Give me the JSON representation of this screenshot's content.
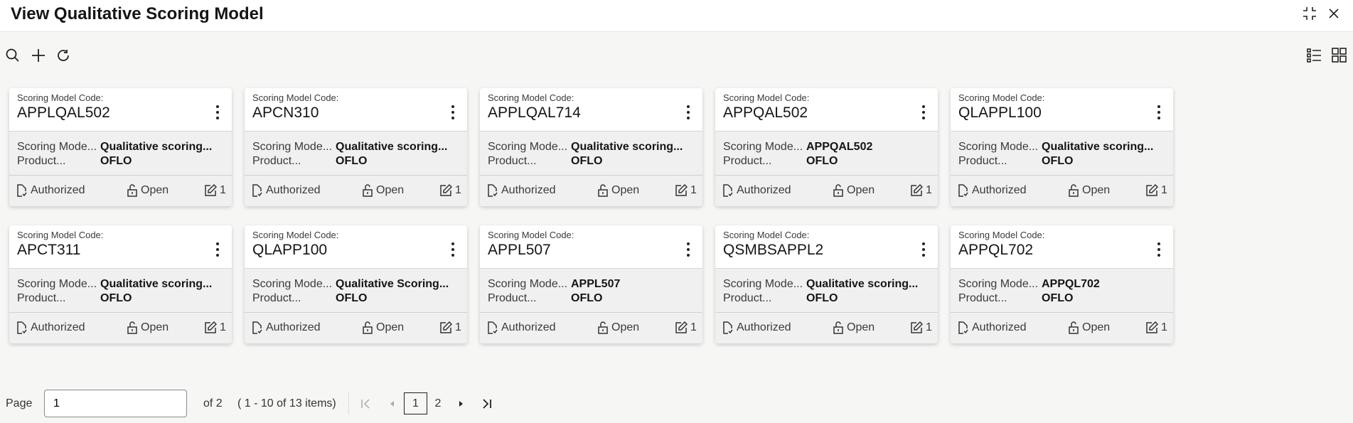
{
  "header": {
    "title": "View Qualitative Scoring Model",
    "icons": [
      "compress-icon",
      "close-icon"
    ]
  },
  "toolbar": {
    "icons": [
      "search-icon",
      "add-icon",
      "refresh-icon"
    ],
    "view_icons": [
      "list-view-icon",
      "grid-view-icon"
    ]
  },
  "card_labels": {
    "code": "Scoring Model Code:",
    "name": "Scoring Mode...",
    "product": "Product...",
    "status": "Authorized",
    "lock": "Open"
  },
  "cards": [
    {
      "code": "APPLQAL502",
      "name": "Qualitative scoring...",
      "product": "OFLO",
      "version": "1"
    },
    {
      "code": "APCN310",
      "name": "Qualitative scoring...",
      "product": "OFLO",
      "version": "1"
    },
    {
      "code": "APPLQAL714",
      "name": "Qualitative scoring...",
      "product": "OFLO",
      "version": "1"
    },
    {
      "code": "APPQAL502",
      "name": "APPQAL502",
      "product": "OFLO",
      "version": "1"
    },
    {
      "code": "QLAPPL100",
      "name": "Qualitative scoring...",
      "product": "OFLO",
      "version": "1"
    },
    {
      "code": "APCT311",
      "name": "Qualitative scoring...",
      "product": "OFLO",
      "version": "1"
    },
    {
      "code": "QLAPP100",
      "name": "Qualitative Scoring...",
      "product": "OFLO",
      "version": "1"
    },
    {
      "code": "APPL507",
      "name": "APPL507",
      "product": "OFLO",
      "version": "1"
    },
    {
      "code": "QSMBSAPPL2",
      "name": "Qualitative scoring...",
      "product": "OFLO",
      "version": "1"
    },
    {
      "code": "APPQL702",
      "name": "APPQL702",
      "product": "OFLO",
      "version": "1"
    }
  ],
  "pagination": {
    "page_label": "Page",
    "page_value": "1",
    "of_label": "of 2",
    "items_label": "( 1 - 10 of 13 items)",
    "pages": [
      "1",
      "2"
    ],
    "current": "1"
  }
}
